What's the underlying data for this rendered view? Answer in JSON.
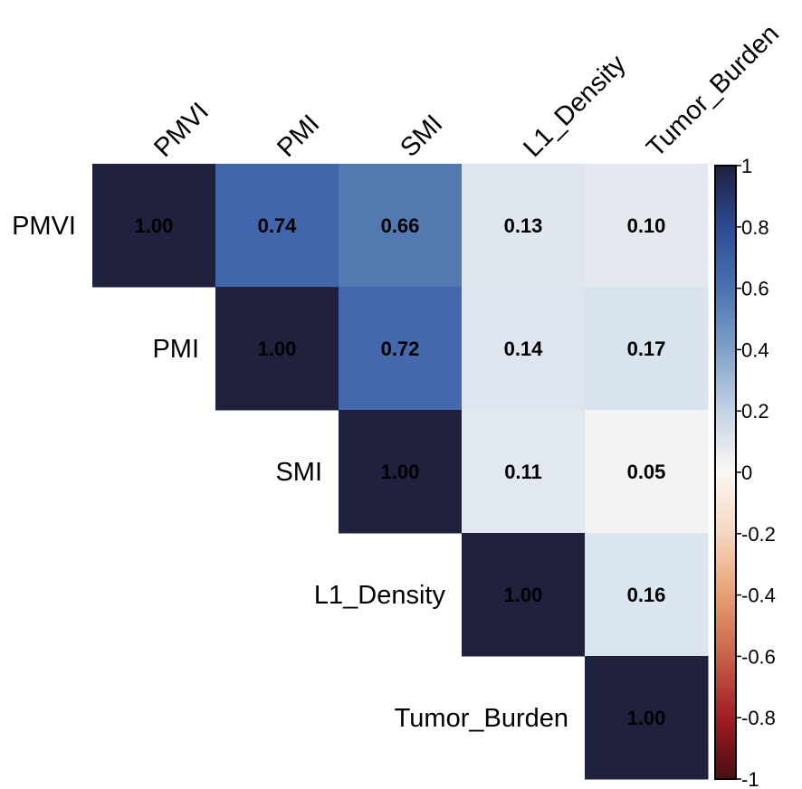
{
  "chart_data": {
    "type": "heatmap",
    "title": "",
    "subtitle": "",
    "xlabel": "",
    "ylabel": "",
    "variables": [
      "PMVI",
      "PMI",
      "SMI",
      "L1_Density",
      "Tumor_Burden"
    ],
    "x_tick_labels": [
      "PMVI",
      "PMI",
      "SMI",
      "L1_Density",
      "Tumor_Burden"
    ],
    "y_tick_labels": [
      "PMVI",
      "PMI",
      "SMI",
      "L1_Density",
      "Tumor_Burden"
    ],
    "layout": "upper-triangle",
    "matrix": [
      [
        1.0,
        0.74,
        0.66,
        0.13,
        0.1
      ],
      [
        null,
        1.0,
        0.72,
        0.14,
        0.17
      ],
      [
        null,
        null,
        1.0,
        0.11,
        0.05
      ],
      [
        null,
        null,
        null,
        1.0,
        0.16
      ],
      [
        null,
        null,
        null,
        null,
        1.0
      ]
    ],
    "value_format": "0.00",
    "colorbar": {
      "range": [
        -1,
        1
      ],
      "ticks": [
        1,
        0.8,
        0.6,
        0.4,
        0.2,
        0,
        -0.2,
        -0.4,
        -0.6,
        -0.8,
        -1
      ],
      "tick_labels": [
        "1",
        "0.8",
        "0.6",
        "0.4",
        "0.2",
        "0",
        "-0.2",
        "-0.4",
        "-0.6",
        "-0.8",
        "-1"
      ],
      "placement": "right",
      "colormap_stops": [
        {
          "value": -1.0,
          "color": "#67001F"
        },
        {
          "value": -0.8,
          "color": "#B2182B"
        },
        {
          "value": -0.6,
          "color": "#D6604D"
        },
        {
          "value": -0.4,
          "color": "#F4A582"
        },
        {
          "value": -0.2,
          "color": "#FDDBC7"
        },
        {
          "value": 0.0,
          "color": "#FFFFFF"
        },
        {
          "value": 0.2,
          "color": "#D1E5F0"
        },
        {
          "value": 0.4,
          "color": "#92C5DE"
        },
        {
          "value": 0.6,
          "color": "#4393C3"
        },
        {
          "value": 0.8,
          "color": "#2166AC"
        },
        {
          "value": 1.0,
          "color": "#053061"
        }
      ]
    },
    "cell_colors": {
      "1.00": "#20213F",
      "0.74": "#4266AB",
      "0.72": "#4569AD",
      "0.66": "#527AB0",
      "0.17": "#D9E3ED",
      "0.16": "#DBE5EF",
      "0.14": "#DEE5EE",
      "0.13": "#DFE6EE",
      "0.11": "#E2E8F0",
      "0.10": "#E4E9F0",
      "0.05": "#F1F3F5"
    },
    "colorbar_gradient": [
      {
        "value": 1.0,
        "color": "#1F2142"
      },
      {
        "value": 0.8,
        "color": "#2B4A93"
      },
      {
        "value": 0.6,
        "color": "#4A72B2"
      },
      {
        "value": 0.4,
        "color": "#7FA1C9"
      },
      {
        "value": 0.2,
        "color": "#C3D3E5"
      },
      {
        "value": 0.0,
        "color": "#FBF7F3"
      },
      {
        "value": -0.2,
        "color": "#F6D6BF"
      },
      {
        "value": -0.4,
        "color": "#E8A070"
      },
      {
        "value": -0.6,
        "color": "#C8624A"
      },
      {
        "value": -0.8,
        "color": "#A11C22"
      },
      {
        "value": -1.0,
        "color": "#4A0E14"
      }
    ],
    "grid": false,
    "legend": "colorbar-right"
  }
}
